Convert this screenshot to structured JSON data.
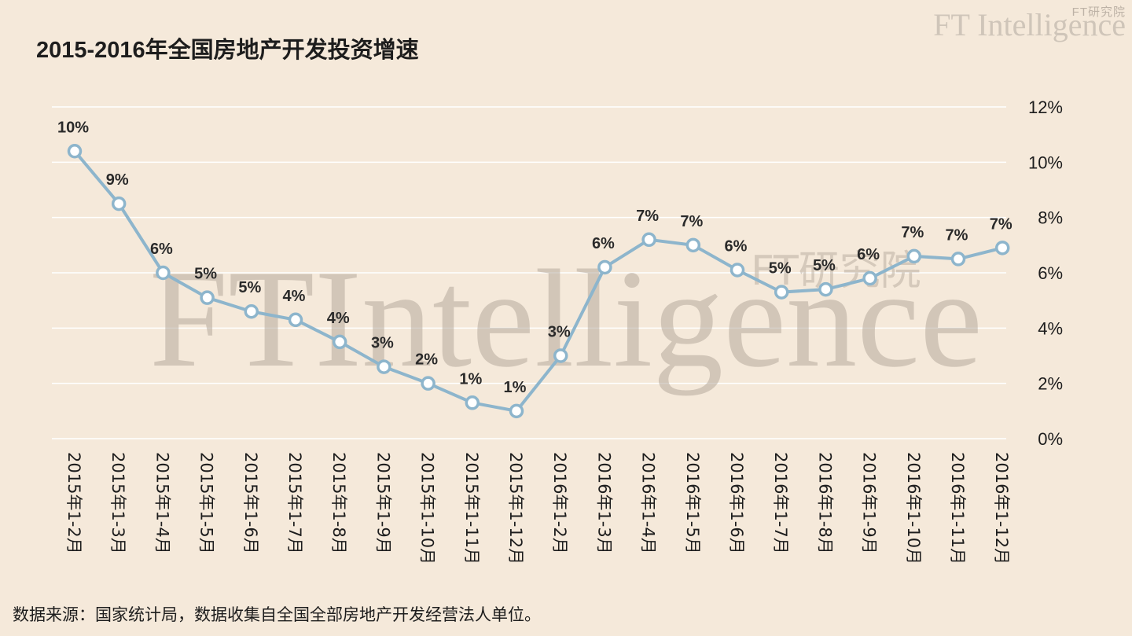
{
  "brand": {
    "name": "FT Intelligence",
    "sub_label": "FT研究院"
  },
  "watermark": {
    "main": "FTIntelligence",
    "sub": "FT研究院"
  },
  "source_note": "数据来源：国家统计局，数据收集自全国全部房地产开发经营法人单位。",
  "colors": {
    "background": "#f5e9da",
    "line": "#8db5cc",
    "grid": "#ffffff",
    "text": "#1d1d1d",
    "watermark": "#b5a99c"
  },
  "chart_data": {
    "type": "line",
    "title": "2015-2016年全国房地产开发投资增速",
    "xlabel": "",
    "ylabel": "",
    "y_axis_side": "right",
    "ylim": [
      0,
      12
    ],
    "yticks": [
      0,
      2,
      4,
      6,
      8,
      10,
      12
    ],
    "ytick_labels": [
      "0%",
      "2%",
      "4%",
      "6%",
      "8%",
      "10%",
      "12%"
    ],
    "grid": true,
    "legend": "none",
    "categories": [
      "2015年1-2月",
      "2015年1-3月",
      "2015年1-4月",
      "2015年1-5月",
      "2015年1-6月",
      "2015年1-7月",
      "2015年1-8月",
      "2015年1-9月",
      "2015年1-10月",
      "2015年1-11月",
      "2015年1-12月",
      "2016年1-2月",
      "2016年1-3月",
      "2016年1-4月",
      "2016年1-5月",
      "2016年1-6月",
      "2016年1-7月",
      "2016年1-8月",
      "2016年1-9月",
      "2016年1-10月",
      "2016年1-11月",
      "2016年1-12月"
    ],
    "series": [
      {
        "values": [
          10.4,
          8.5,
          6.0,
          5.1,
          4.6,
          4.3,
          3.5,
          2.6,
          2.0,
          1.3,
          1.0,
          3.0,
          6.2,
          7.2,
          7.0,
          6.1,
          5.3,
          5.4,
          5.8,
          6.6,
          6.5,
          6.9
        ],
        "data_labels": [
          "10%",
          "9%",
          "6%",
          "5%",
          "5%",
          "4%",
          "4%",
          "3%",
          "2%",
          "1%",
          "1%",
          "3%",
          "6%",
          "7%",
          "7%",
          "6%",
          "5%",
          "5%",
          "6%",
          "7%",
          "7%",
          "7%"
        ]
      }
    ]
  }
}
